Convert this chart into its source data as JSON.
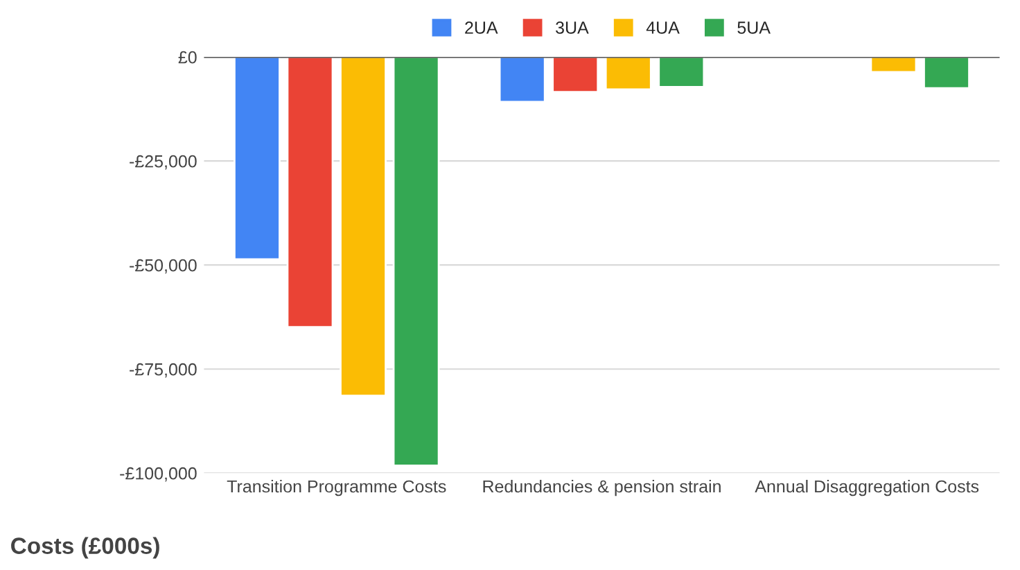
{
  "chart_data": {
    "type": "bar",
    "ylabel": "Costs (£000s)",
    "categories": [
      "Transition Programme Costs",
      "Redundancies & pension strain",
      "Annual Disaggregation Costs"
    ],
    "series": [
      {
        "name": "2UA",
        "color": "#4285f4",
        "values": [
          -48600,
          -10800,
          null
        ]
      },
      {
        "name": "3UA",
        "color": "#ea4335",
        "values": [
          -64900,
          -8400,
          null
        ]
      },
      {
        "name": "4UA",
        "color": "#fbbc04",
        "values": [
          -81400,
          -7800,
          -3600
        ]
      },
      {
        "name": "5UA",
        "color": "#34a853",
        "values": [
          -98200,
          -7200,
          -7500
        ]
      }
    ],
    "ylim": [
      -100000,
      0
    ],
    "yticks": [
      {
        "value": -100000,
        "label": "-£100,000"
      },
      {
        "value": -75000,
        "label": "-£75,000"
      },
      {
        "value": -50000,
        "label": "-£50,000"
      },
      {
        "value": -25000,
        "label": "-£25,000"
      },
      {
        "value": 0,
        "label": "£0"
      }
    ],
    "grid": "y",
    "legend": "top"
  }
}
